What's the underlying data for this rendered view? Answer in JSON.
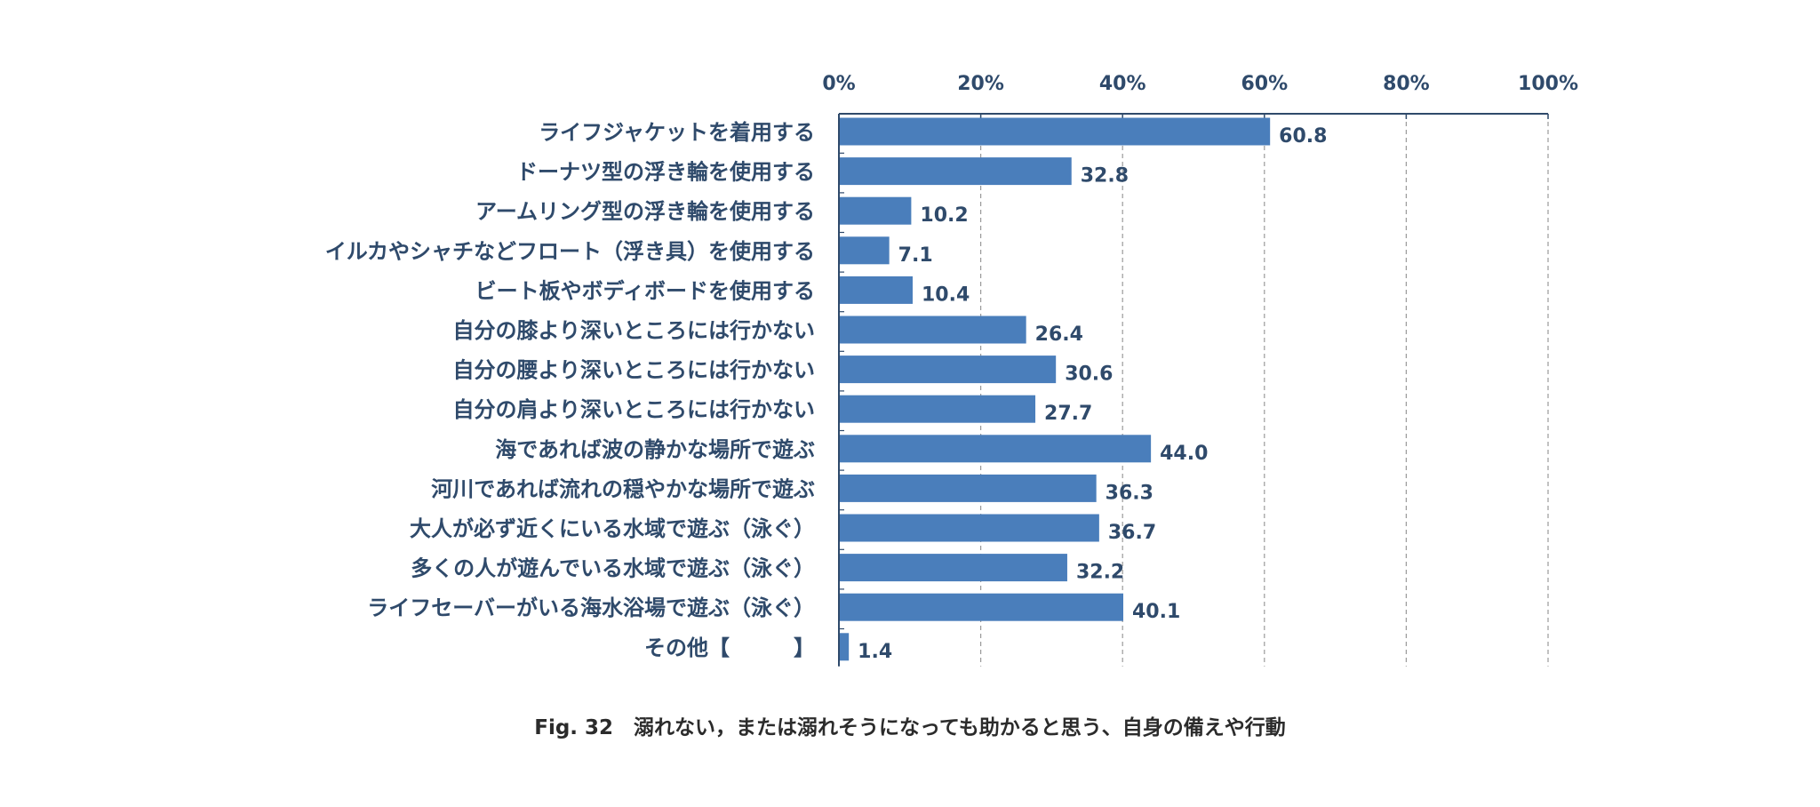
{
  "chart_data": {
    "type": "bar",
    "orientation": "horizontal",
    "caption": "Fig. 32　溺れない，または溺れそうになっても助かると思う、自身の備えや行動",
    "x_tick_labels": [
      "0%",
      "20%",
      "40%",
      "60%",
      "80%",
      "100%"
    ],
    "xlim": [
      0,
      100
    ],
    "grid": "vertical dashed",
    "bar_color": "#4a7ebb",
    "categories": [
      "ライフジャケットを着用する",
      "ドーナツ型の浮き輪を使用する",
      "アームリング型の浮き輪を使用する",
      "イルカやシャチなどフロート（浮き具）を使用する",
      "ビート板やボディボードを使用する",
      "自分の膝より深いところには行かない",
      "自分の腰より深いところには行かない",
      "自分の肩より深いところには行かない",
      "海であれば波の静かな場所で遊ぶ",
      "河川であれば流れの穏やかな場所で遊ぶ",
      "大人が必ず近くにいる水域で遊ぶ（泳ぐ）",
      "多くの人が遊んでいる水域で遊ぶ（泳ぐ）",
      "ライフセーバーがいる海水浴場で遊ぶ（泳ぐ）",
      "その他【　　　】"
    ],
    "values": [
      60.8,
      32.8,
      10.2,
      7.1,
      10.4,
      26.4,
      30.6,
      27.7,
      44.0,
      36.3,
      36.7,
      32.2,
      40.1,
      1.4
    ],
    "value_labels": [
      "60.8",
      "32.8",
      "10.2",
      "7.1",
      "10.4",
      "26.4",
      "30.6",
      "27.7",
      "44.0",
      "36.3",
      "36.7",
      "32.2",
      "40.1",
      "1.4"
    ]
  }
}
